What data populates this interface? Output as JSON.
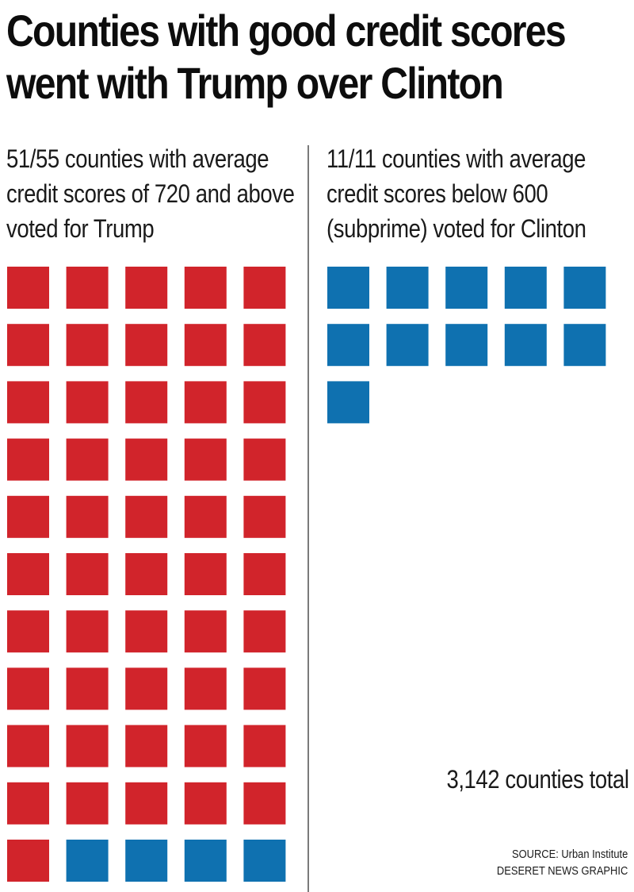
{
  "title": {
    "line1": "Counties with good credit scores",
    "line2": "went with Trump over Clinton"
  },
  "left_panel": {
    "line1": "51/55 counties with average",
    "line2": "credit scores of 720 and above",
    "line3": "voted for Trump"
  },
  "right_panel": {
    "line1": "11/11 counties with average",
    "line2": "credit scores below 600",
    "line3": "(subprime) voted for Clinton"
  },
  "total_note": "3,142 counties total",
  "source": "SOURCE: Urban Institute",
  "credit": "DESERET NEWS GRAPHIC",
  "colors": {
    "trump": "#d1242b",
    "clinton": "#0f71b0",
    "divider": "#7a7a7a"
  },
  "chart_data": [
    {
      "type": "waffle",
      "title": "51/55 counties with average credit scores of 720 and above voted for Trump",
      "categories": [
        "Trump",
        "Clinton"
      ],
      "values": [
        51,
        4
      ],
      "total": 55,
      "columns": 5
    },
    {
      "type": "waffle",
      "title": "11/11 counties with average credit scores below 600 (subprime) voted for Clinton",
      "categories": [
        "Trump",
        "Clinton"
      ],
      "values": [
        0,
        11
      ],
      "total": 11,
      "columns": 5
    }
  ]
}
